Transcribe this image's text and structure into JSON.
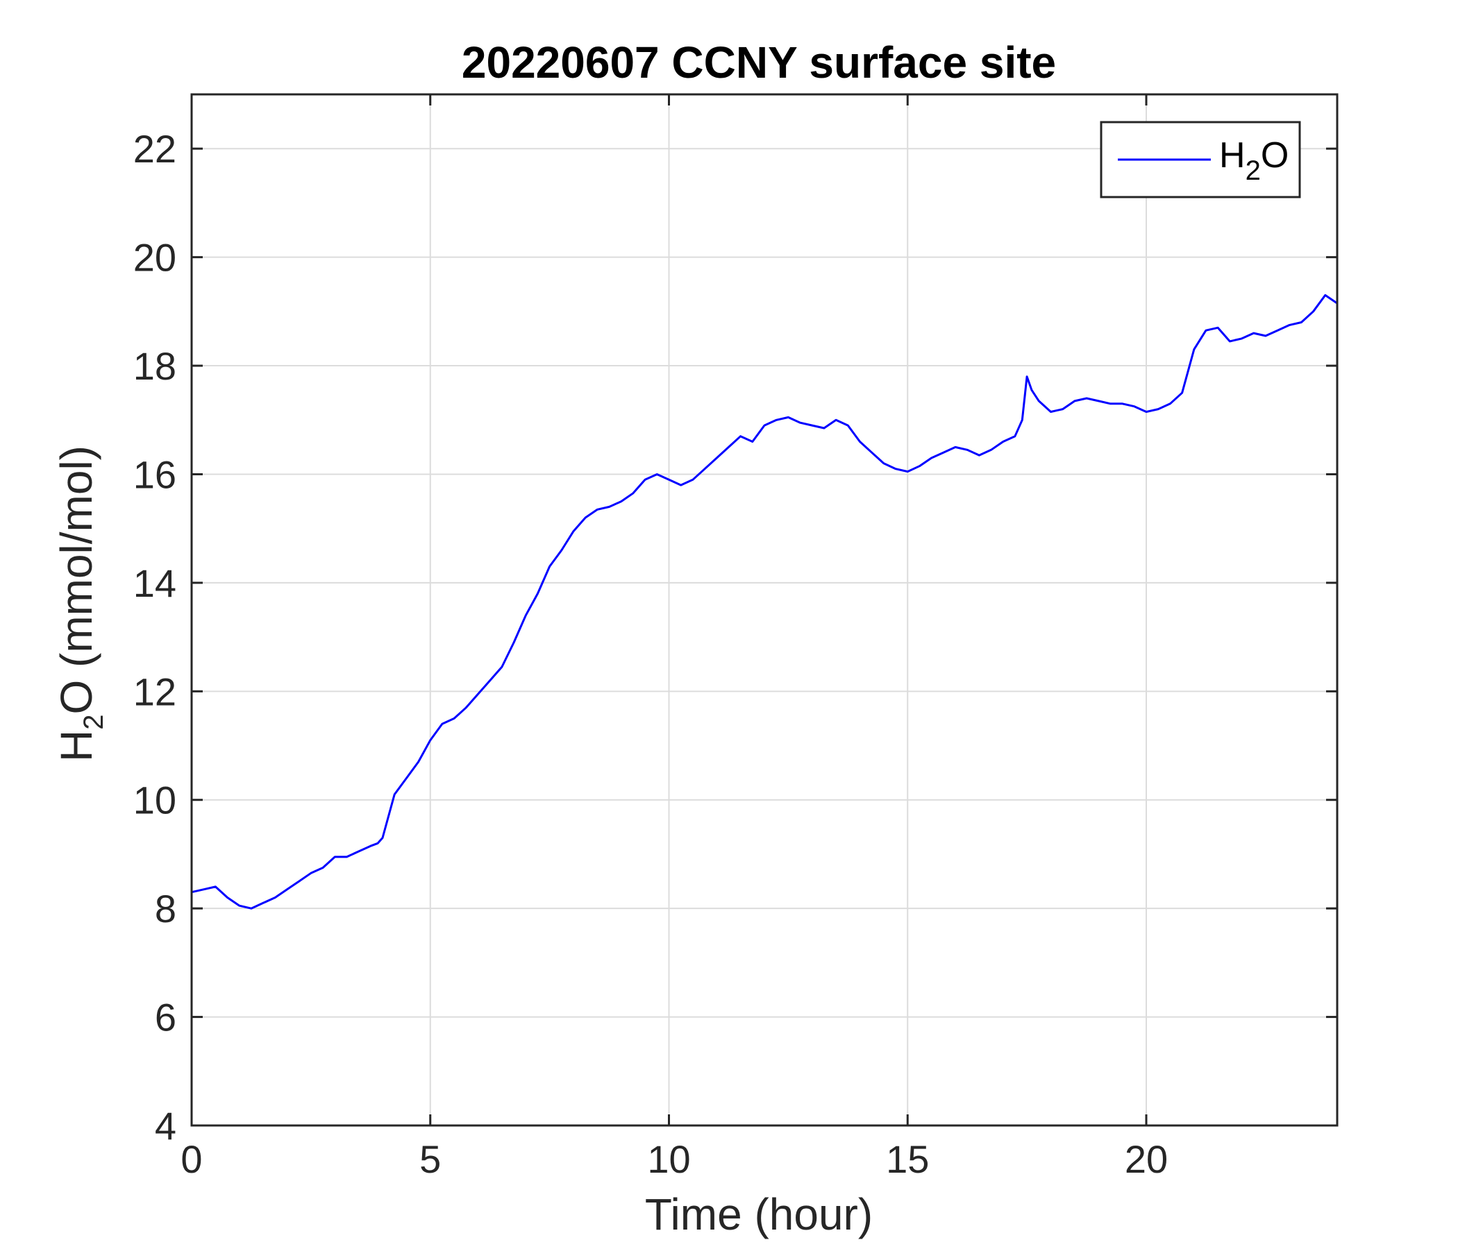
{
  "chart_data": {
    "type": "line",
    "title": "20220607 CCNY surface site",
    "xlabel": "Time (hour)",
    "ylabel_parts": [
      "H",
      "2",
      "O (mmol/mol)"
    ],
    "xlim": [
      0,
      24
    ],
    "ylim": [
      4,
      23
    ],
    "x_ticks": [
      0,
      5,
      10,
      15,
      20
    ],
    "y_ticks": [
      4,
      6,
      8,
      10,
      12,
      14,
      16,
      18,
      20,
      22
    ],
    "grid": true,
    "legend": {
      "position": "top-right",
      "entries": [
        {
          "label_parts": [
            "H",
            "2",
            "O"
          ]
        }
      ]
    },
    "series": [
      {
        "color": "#0000ff",
        "x": [
          0,
          0.25,
          0.5,
          0.75,
          1.0,
          1.25,
          1.5,
          1.75,
          2.0,
          2.25,
          2.5,
          2.75,
          3.0,
          3.25,
          3.5,
          3.75,
          3.9,
          4.0,
          4.25,
          4.5,
          4.75,
          5.0,
          5.25,
          5.5,
          5.75,
          6.0,
          6.25,
          6.5,
          6.75,
          7.0,
          7.25,
          7.5,
          7.75,
          8.0,
          8.25,
          8.5,
          8.75,
          9.0,
          9.25,
          9.5,
          9.75,
          10.0,
          10.25,
          10.5,
          10.75,
          11.0,
          11.25,
          11.5,
          11.75,
          12.0,
          12.25,
          12.5,
          12.75,
          13.0,
          13.25,
          13.5,
          13.75,
          14.0,
          14.25,
          14.5,
          14.75,
          15.0,
          15.25,
          15.5,
          15.75,
          16.0,
          16.25,
          16.5,
          16.75,
          17.0,
          17.25,
          17.4,
          17.5,
          17.6,
          17.75,
          18.0,
          18.25,
          18.5,
          18.75,
          19.0,
          19.25,
          19.5,
          19.75,
          20.0,
          20.25,
          20.5,
          20.75,
          21.0,
          21.25,
          21.5,
          21.75,
          22.0,
          22.25,
          22.5,
          22.75,
          23.0,
          23.25,
          23.5,
          23.75,
          24.0
        ],
        "y": [
          8.3,
          8.35,
          8.4,
          8.2,
          8.05,
          8.0,
          8.1,
          8.2,
          8.35,
          8.5,
          8.65,
          8.75,
          8.95,
          8.95,
          9.05,
          9.15,
          9.2,
          9.3,
          10.1,
          10.4,
          10.7,
          11.1,
          11.4,
          11.5,
          11.7,
          11.95,
          12.2,
          12.45,
          12.9,
          13.4,
          13.8,
          14.3,
          14.6,
          14.95,
          15.2,
          15.35,
          15.4,
          15.5,
          15.65,
          15.9,
          16.0,
          15.9,
          15.8,
          15.9,
          16.1,
          16.3,
          16.5,
          16.7,
          16.6,
          16.9,
          17.0,
          17.05,
          16.95,
          16.9,
          16.85,
          17.0,
          16.9,
          16.6,
          16.4,
          16.2,
          16.1,
          16.05,
          16.15,
          16.3,
          16.4,
          16.5,
          16.45,
          16.35,
          16.45,
          16.6,
          16.7,
          17.0,
          17.8,
          17.55,
          17.35,
          17.15,
          17.2,
          17.35,
          17.4,
          17.35,
          17.3,
          17.3,
          17.25,
          17.15,
          17.2,
          17.3,
          17.5,
          18.3,
          18.65,
          18.7,
          18.45,
          18.5,
          18.6,
          18.55,
          18.65,
          18.75,
          18.8,
          19.0,
          19.3,
          19.15
        ]
      }
    ]
  }
}
